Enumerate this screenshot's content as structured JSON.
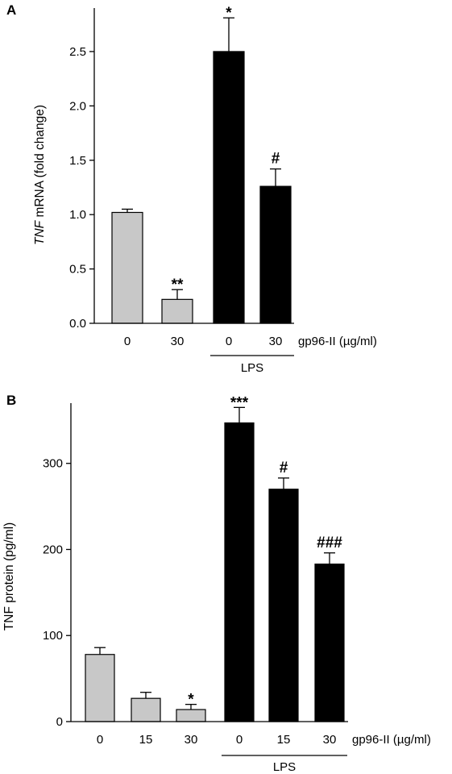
{
  "chart_data": [
    {
      "panel": "A",
      "type": "bar",
      "categories": [
        "0",
        "30",
        "0",
        "30"
      ],
      "values": [
        1.02,
        0.22,
        2.5,
        1.26
      ],
      "errors": [
        0.03,
        0.09,
        0.31,
        0.16
      ],
      "bar_colors": [
        "#c8c8c8",
        "#c8c8c8",
        "#000000",
        "#000000"
      ],
      "annotations": [
        "",
        "**",
        "*",
        "#"
      ],
      "ylabel_italic": "TNF",
      "ylabel_rest": " mRNA (fold change)",
      "ylim": [
        0,
        2.9
      ],
      "yticks": [
        0.0,
        0.5,
        1.0,
        1.5,
        2.0,
        2.5
      ],
      "ytick_labels": [
        "0.0",
        "0.5",
        "1.0",
        "1.5",
        "2.0",
        "2.5"
      ],
      "xlabel": "gp96-II (µg/ml)",
      "group_label": "LPS",
      "group_span": [
        2,
        3
      ],
      "grid": false
    },
    {
      "panel": "B",
      "type": "bar",
      "categories": [
        "0",
        "15",
        "30",
        "0",
        "15",
        "30"
      ],
      "values": [
        78,
        27,
        14,
        347,
        270,
        183
      ],
      "errors": [
        8,
        7,
        6,
        18,
        13,
        13
      ],
      "bar_colors": [
        "#c8c8c8",
        "#c8c8c8",
        "#c8c8c8",
        "#000000",
        "#000000",
        "#000000"
      ],
      "annotations": [
        "",
        "",
        "*",
        "***",
        "#",
        "###"
      ],
      "ylabel": "TNF protein (pg/ml)",
      "ylim": [
        0,
        370
      ],
      "yticks": [
        0,
        100,
        200,
        300
      ],
      "ytick_labels": [
        "0",
        "100",
        "200",
        "300"
      ],
      "xlabel": "gp96-II (µg/ml)",
      "group_label": "LPS",
      "group_span": [
        3,
        5
      ],
      "grid": false
    }
  ]
}
